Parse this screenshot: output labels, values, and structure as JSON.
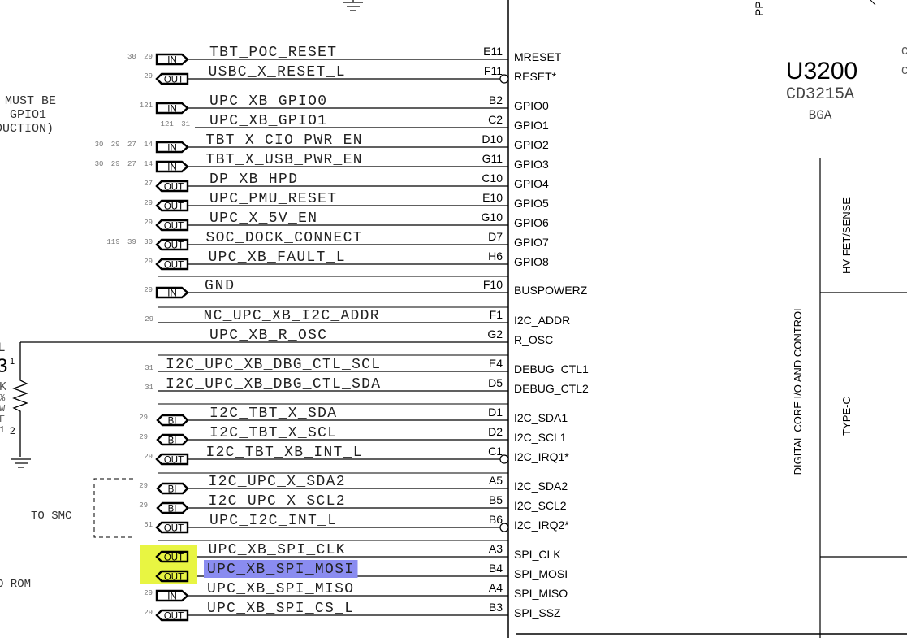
{
  "part": {
    "refdes": "U3200",
    "part_number": "CD3215A",
    "package": "BGA"
  },
  "sections": [
    "HV FET/SENSE",
    "TYPE-C",
    "DIGITAL CORE I/O AND CONTROL"
  ],
  "notes": {
    "must_be": "MUST BE",
    "gpio1": "GPIO1",
    "duction": "DUCTION)",
    "to_smc": "TO SMC",
    "rom": "O ROM",
    "top_pp": "PP",
    "right_c1": "C",
    "right_c2": "C"
  },
  "resistor": {
    "ref_partial": "L",
    "ref_digit": "3",
    "pin1": "1",
    "pin2": "2",
    "value_chars": [
      "K",
      "%",
      "W",
      "F",
      "1"
    ]
  },
  "colors": {
    "wire": "#000000",
    "highlight_flag": "#e8f542",
    "selected_net": "#8a8cf0"
  },
  "nets": [
    {
      "net": "TBT_POC_RESET",
      "ball": "E11",
      "pin": "MRESET",
      "refs": "30 29",
      "flag": "IN"
    },
    {
      "net": "USBC_X_RESET_L",
      "ball": "F11",
      "pin": "RESET*",
      "refs": "29",
      "flag": "OUT",
      "bubble": true
    },
    {
      "net": "UPC_XB_GPIO0",
      "ball": "B2",
      "pin": "GPIO0",
      "refs": "121",
      "flag": "IN"
    },
    {
      "net": "UPC_XB_GPIO1",
      "ball": "C2",
      "pin": "GPIO1",
      "refs": "121 31",
      "flag": ""
    },
    {
      "net": "TBT_X_CIO_PWR_EN",
      "ball": "D10",
      "pin": "GPIO2",
      "refs": "30 29 27 14",
      "flag": "IN"
    },
    {
      "net": "TBT_X_USB_PWR_EN",
      "ball": "G11",
      "pin": "GPIO3",
      "refs": "30 29 27 14",
      "flag": "IN"
    },
    {
      "net": "DP_XB_HPD",
      "ball": "C10",
      "pin": "GPIO4",
      "refs": "27",
      "flag": "OUT"
    },
    {
      "net": "UPC_PMU_RESET",
      "ball": "E10",
      "pin": "GPIO5",
      "refs": "29",
      "flag": "OUT"
    },
    {
      "net": "UPC_X_5V_EN",
      "ball": "G10",
      "pin": "GPIO6",
      "refs": "29",
      "flag": "OUT"
    },
    {
      "net": "SOC_DOCK_CONNECT",
      "ball": "D7",
      "pin": "GPIO7",
      "refs": "119 39 30",
      "flag": "OUT"
    },
    {
      "net": "UPC_XB_FAULT_L",
      "ball": "H6",
      "pin": "GPIO8",
      "refs": "29",
      "flag": "OUT"
    },
    {
      "net": "GND",
      "ball": "F10",
      "pin": "BUSPOWERZ",
      "refs": "29",
      "flag": "IN"
    },
    {
      "net": "NC_UPC_XB_I2C_ADDR",
      "ball": "F1",
      "pin": "I2C_ADDR",
      "refs": "29",
      "flag": ""
    },
    {
      "net": "UPC_XB_R_OSC",
      "ball": "G2",
      "pin": "R_OSC",
      "refs": "",
      "flag": ""
    },
    {
      "net": "I2C_UPC_XB_DBG_CTL_SCL",
      "ball": "E4",
      "pin": "DEBUG_CTL1",
      "refs": "31",
      "flag": ""
    },
    {
      "net": "I2C_UPC_XB_DBG_CTL_SDA",
      "ball": "D5",
      "pin": "DEBUG_CTL2",
      "refs": "31",
      "flag": ""
    },
    {
      "net": "I2C_TBT_X_SDA",
      "ball": "D1",
      "pin": "I2C_SDA1",
      "refs": "29",
      "flag": "BI"
    },
    {
      "net": "I2C_TBT_X_SCL",
      "ball": "D2",
      "pin": "I2C_SCL1",
      "refs": "29",
      "flag": "BI"
    },
    {
      "net": "I2C_TBT_XB_INT_L",
      "ball": "C1",
      "pin": "I2C_IRQ1*",
      "refs": "29",
      "flag": "OUT",
      "bubble": true
    },
    {
      "net": "I2C_UPC_X_SDA2",
      "ball": "A5",
      "pin": "I2C_SDA2",
      "refs": "29",
      "flag": "BI"
    },
    {
      "net": "I2C_UPC_X_SCL2",
      "ball": "B5",
      "pin": "I2C_SCL2",
      "refs": "29",
      "flag": "BI"
    },
    {
      "net": "UPC_I2C_INT_L",
      "ball": "B6",
      "pin": "I2C_IRQ2*",
      "refs": "51",
      "flag": "OUT",
      "bubble": true
    },
    {
      "net": "UPC_XB_SPI_CLK",
      "ball": "A3",
      "pin": "SPI_CLK",
      "refs": "29",
      "flag": "OUT",
      "highlight": true
    },
    {
      "net": "UPC_XB_SPI_MOSI",
      "ball": "B4",
      "pin": "SPI_MOSI",
      "refs": "29",
      "flag": "OUT",
      "highlight": true,
      "selected": true
    },
    {
      "net": "UPC_XB_SPI_MISO",
      "ball": "A4",
      "pin": "SPI_MISO",
      "refs": "29",
      "flag": "IN"
    },
    {
      "net": "UPC_XB_SPI_CS_L",
      "ball": "B3",
      "pin": "SPI_SSZ",
      "refs": "29",
      "flag": "OUT"
    }
  ]
}
